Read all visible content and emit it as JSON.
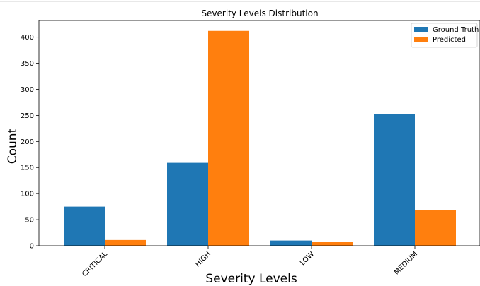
{
  "chart_data": {
    "type": "bar",
    "title": "Severity Levels Distribution",
    "xlabel": "Severity Levels",
    "ylabel": "Count",
    "categories": [
      "CRITICAL",
      "HIGH",
      "LOW",
      "MEDIUM"
    ],
    "series": [
      {
        "name": "Ground Truth",
        "values": [
          75,
          159,
          10,
          253
        ],
        "color": "#1f77b4"
      },
      {
        "name": "Predicted",
        "values": [
          11,
          412,
          7,
          68
        ],
        "color": "#ff7f0e"
      }
    ],
    "ylim": [
      0,
      432
    ],
    "yticks": [
      0,
      50,
      100,
      150,
      200,
      250,
      300,
      350,
      400
    ],
    "legend_position": "top-right",
    "grid": false
  }
}
